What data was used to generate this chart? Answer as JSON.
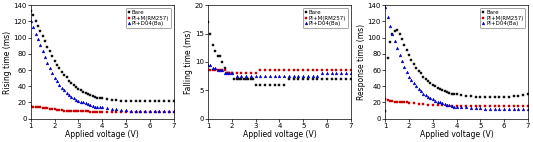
{
  "plot1": {
    "ylabel": "Rising time (ms)",
    "xlabel": "Applied voltage (V)",
    "ylim": [
      0,
      140
    ],
    "xlim": [
      1,
      7
    ],
    "yticks": [
      0,
      20,
      40,
      60,
      80,
      100,
      120,
      140
    ],
    "xticks": [
      1,
      2,
      3,
      4,
      5,
      6,
      7
    ],
    "series": {
      "Bare": {
        "color": "#111111",
        "marker": "s",
        "x": [
          1.0,
          1.1,
          1.2,
          1.3,
          1.4,
          1.5,
          1.6,
          1.7,
          1.8,
          1.9,
          2.0,
          2.1,
          2.2,
          2.3,
          2.4,
          2.5,
          2.6,
          2.7,
          2.8,
          2.9,
          3.0,
          3.1,
          3.2,
          3.3,
          3.4,
          3.5,
          3.6,
          3.7,
          3.8,
          3.9,
          4.0,
          4.2,
          4.4,
          4.6,
          4.8,
          5.0,
          5.2,
          5.4,
          5.6,
          5.8,
          6.0,
          6.2,
          6.4,
          6.6,
          6.8,
          7.0
        ],
        "y": [
          133,
          128,
          120,
          114,
          108,
          102,
          96,
          89,
          83,
          77,
          71,
          66,
          62,
          58,
          54,
          51,
          47,
          44,
          42,
          39,
          37,
          35,
          33,
          32,
          30,
          29,
          28,
          27,
          26,
          25,
          25,
          24,
          23,
          23,
          22,
          22,
          22,
          22,
          22,
          22,
          22,
          22,
          22,
          22,
          22,
          22
        ]
      },
      "PI+M(RM257)": {
        "color": "#cc0000",
        "marker": "s",
        "x": [
          1.0,
          1.1,
          1.2,
          1.3,
          1.4,
          1.5,
          1.6,
          1.7,
          1.8,
          1.9,
          2.0,
          2.1,
          2.2,
          2.3,
          2.4,
          2.5,
          2.6,
          2.7,
          2.8,
          2.9,
          3.0,
          3.1,
          3.2,
          3.3,
          3.4,
          3.5,
          3.6,
          3.7,
          3.8,
          3.9,
          4.0,
          4.2,
          4.4,
          4.6,
          4.8,
          5.0,
          5.2,
          5.4,
          5.6,
          5.8,
          6.0,
          6.2,
          6.4,
          6.6,
          6.8,
          7.0
        ],
        "y": [
          16,
          15,
          15,
          14,
          14,
          13,
          13,
          13,
          12,
          12,
          12,
          11,
          11,
          11,
          10,
          10,
          10,
          10,
          9,
          9,
          9,
          9,
          9,
          9,
          9,
          8,
          8,
          8,
          8,
          8,
          8,
          8,
          8,
          8,
          8,
          8,
          8,
          8,
          8,
          8,
          8,
          8,
          8,
          8,
          8,
          8
        ]
      },
      "PI+D04(Ba)": {
        "color": "#0000cc",
        "marker": "^",
        "x": [
          1.0,
          1.1,
          1.2,
          1.3,
          1.4,
          1.5,
          1.6,
          1.7,
          1.8,
          1.9,
          2.0,
          2.1,
          2.2,
          2.3,
          2.4,
          2.5,
          2.6,
          2.7,
          2.8,
          2.9,
          3.0,
          3.1,
          3.2,
          3.3,
          3.4,
          3.5,
          3.6,
          3.7,
          3.8,
          3.9,
          4.0,
          4.2,
          4.4,
          4.6,
          4.8,
          5.0,
          5.2,
          5.4,
          5.6,
          5.8,
          6.0,
          6.2,
          6.4,
          6.6,
          6.8,
          7.0
        ],
        "y": [
          120,
          113,
          105,
          98,
          91,
          83,
          76,
          69,
          62,
          56,
          50,
          46,
          42,
          38,
          35,
          32,
          29,
          27,
          25,
          23,
          22,
          21,
          20,
          19,
          18,
          17,
          16,
          15,
          15,
          14,
          14,
          13,
          12,
          12,
          11,
          11,
          10,
          10,
          10,
          10,
          10,
          10,
          9,
          9,
          9,
          9
        ]
      }
    }
  },
  "plot2": {
    "ylabel": "Falling time (ms)",
    "xlabel": "Applied voltage (V)",
    "ylim": [
      0,
      20
    ],
    "xlim": [
      1,
      7
    ],
    "yticks": [
      0,
      5,
      10,
      15,
      20
    ],
    "xticks": [
      1,
      2,
      3,
      4,
      5,
      6,
      7
    ],
    "series": {
      "Bare": {
        "color": "#111111",
        "marker": "s",
        "x": [
          1.0,
          1.1,
          1.2,
          1.3,
          1.4,
          1.5,
          1.6,
          1.7,
          1.8,
          1.9,
          2.0,
          2.1,
          2.2,
          2.3,
          2.4,
          2.5,
          2.6,
          2.7,
          2.8,
          2.9,
          3.0,
          3.2,
          3.4,
          3.6,
          3.8,
          4.0,
          4.2,
          4.4,
          4.6,
          4.8,
          5.0,
          5.2,
          5.4,
          5.6,
          5.8,
          6.0,
          6.2,
          6.4,
          6.6,
          6.8,
          7.0
        ],
        "y": [
          17,
          15,
          13,
          12,
          11,
          11,
          10,
          9,
          8,
          8,
          8,
          7,
          7,
          7,
          7,
          7,
          7,
          7,
          7,
          7,
          6,
          6,
          6,
          6,
          6,
          6,
          6,
          7,
          7,
          7,
          7,
          7,
          7,
          7,
          7,
          7,
          7,
          7,
          7,
          7,
          7
        ]
      },
      "PI+M(RM257)": {
        "color": "#cc0000",
        "marker": "s",
        "x": [
          1.0,
          1.1,
          1.2,
          1.3,
          1.4,
          1.5,
          1.6,
          1.7,
          1.8,
          1.9,
          2.0,
          2.2,
          2.4,
          2.6,
          2.8,
          3.0,
          3.2,
          3.4,
          3.6,
          3.8,
          4.0,
          4.2,
          4.4,
          4.6,
          4.8,
          5.0,
          5.2,
          5.4,
          5.6,
          5.8,
          6.0,
          6.2,
          6.4,
          6.6,
          6.8,
          7.0
        ],
        "y": [
          8.5,
          8.5,
          8.5,
          8.5,
          8.5,
          8.5,
          8.5,
          8.5,
          8.0,
          8.0,
          8.0,
          8.0,
          8.0,
          8.0,
          8.0,
          8.0,
          8.5,
          8.5,
          8.5,
          8.5,
          8.5,
          8.5,
          8.5,
          8.5,
          8.5,
          8.5,
          8.5,
          8.5,
          8.5,
          8.5,
          8.5,
          8.5,
          8.5,
          8.5,
          8.5,
          8.5
        ]
      },
      "PI+D04(Ba)": {
        "color": "#0000cc",
        "marker": "^",
        "x": [
          1.0,
          1.1,
          1.2,
          1.3,
          1.4,
          1.5,
          1.6,
          1.7,
          1.8,
          1.9,
          2.0,
          2.2,
          2.4,
          2.6,
          2.8,
          3.0,
          3.2,
          3.4,
          3.6,
          3.8,
          4.0,
          4.2,
          4.4,
          4.6,
          4.8,
          5.0,
          5.2,
          5.4,
          5.6,
          5.8,
          6.0,
          6.2,
          6.4,
          6.6,
          6.8,
          7.0
        ],
        "y": [
          9.5,
          9.5,
          9.0,
          9.0,
          8.5,
          8.5,
          8.5,
          8.0,
          8.0,
          8.0,
          8.0,
          7.5,
          7.5,
          7.5,
          7.5,
          7.5,
          7.5,
          7.5,
          7.5,
          7.5,
          7.5,
          7.5,
          7.5,
          7.5,
          7.5,
          7.5,
          7.5,
          7.5,
          7.5,
          8.0,
          8.0,
          8.0,
          8.0,
          8.0,
          8.0,
          8.0
        ]
      }
    }
  },
  "plot3": {
    "ylabel": "Response time (ms)",
    "xlabel": "Applied voltage (V)",
    "ylim": [
      0,
      140
    ],
    "xlim": [
      1,
      7
    ],
    "yticks": [
      0,
      20,
      40,
      60,
      80,
      100,
      120,
      140
    ],
    "xticks": [
      1,
      2,
      3,
      4,
      5,
      6,
      7
    ],
    "series": {
      "Bare": {
        "color": "#111111",
        "marker": "s",
        "x": [
          1.0,
          1.1,
          1.2,
          1.3,
          1.4,
          1.5,
          1.6,
          1.7,
          1.8,
          1.9,
          2.0,
          2.1,
          2.2,
          2.3,
          2.4,
          2.5,
          2.6,
          2.7,
          2.8,
          2.9,
          3.0,
          3.1,
          3.2,
          3.3,
          3.4,
          3.5,
          3.6,
          3.7,
          3.8,
          3.9,
          4.0,
          4.2,
          4.4,
          4.6,
          4.8,
          5.0,
          5.2,
          5.4,
          5.6,
          5.8,
          6.0,
          6.2,
          6.4,
          6.6,
          6.8,
          7.0
        ],
        "y": [
          10,
          75,
          95,
          105,
          108,
          110,
          105,
          98,
          91,
          85,
          78,
          72,
          67,
          63,
          59,
          56,
          52,
          49,
          46,
          44,
          42,
          40,
          38,
          37,
          35,
          34,
          33,
          32,
          31,
          30,
          30,
          29,
          28,
          28,
          27,
          27,
          27,
          27,
          27,
          27,
          27,
          27,
          28,
          28,
          29,
          30
        ]
      },
      "PI+M(RM257)": {
        "color": "#cc0000",
        "marker": "s",
        "x": [
          1.0,
          1.1,
          1.2,
          1.3,
          1.4,
          1.5,
          1.6,
          1.7,
          1.8,
          1.9,
          2.0,
          2.2,
          2.4,
          2.6,
          2.8,
          3.0,
          3.2,
          3.4,
          3.6,
          3.8,
          4.0,
          4.2,
          4.4,
          4.6,
          4.8,
          5.0,
          5.2,
          5.4,
          5.6,
          5.8,
          6.0,
          6.2,
          6.4,
          6.6,
          6.8,
          7.0
        ],
        "y": [
          24,
          23,
          22,
          22,
          21,
          21,
          21,
          20,
          20,
          20,
          19,
          19,
          18,
          18,
          17,
          17,
          17,
          17,
          16,
          16,
          16,
          16,
          16,
          16,
          16,
          16,
          16,
          16,
          16,
          16,
          16,
          16,
          16,
          16,
          16,
          16
        ]
      },
      "PI+D04(Ba)": {
        "color": "#0000cc",
        "marker": "^",
        "x": [
          1.0,
          1.1,
          1.2,
          1.3,
          1.4,
          1.5,
          1.6,
          1.7,
          1.8,
          1.9,
          2.0,
          2.1,
          2.2,
          2.3,
          2.4,
          2.5,
          2.6,
          2.7,
          2.8,
          2.9,
          3.0,
          3.1,
          3.2,
          3.3,
          3.4,
          3.5,
          3.6,
          3.7,
          3.8,
          3.9,
          4.0,
          4.2,
          4.4,
          4.6,
          4.8,
          5.0,
          5.2,
          5.4,
          5.6,
          5.8,
          6.0,
          6.2,
          6.4,
          6.6,
          6.8,
          7.0
        ],
        "y": [
          138,
          126,
          115,
          105,
          96,
          87,
          79,
          71,
          64,
          58,
          52,
          48,
          44,
          40,
          37,
          34,
          31,
          29,
          27,
          25,
          24,
          22,
          21,
          20,
          19,
          18,
          17,
          17,
          16,
          15,
          15,
          14,
          14,
          13,
          13,
          13,
          12,
          12,
          12,
          12,
          12,
          12,
          12,
          12,
          12,
          12
        ]
      }
    }
  },
  "legend_labels": [
    "Bare",
    "PI+M(RM257)",
    "PI+D04(Ba)"
  ],
  "background_color": "#ffffff",
  "font_size": 5.5,
  "marker_size": 2,
  "line_width": 0
}
